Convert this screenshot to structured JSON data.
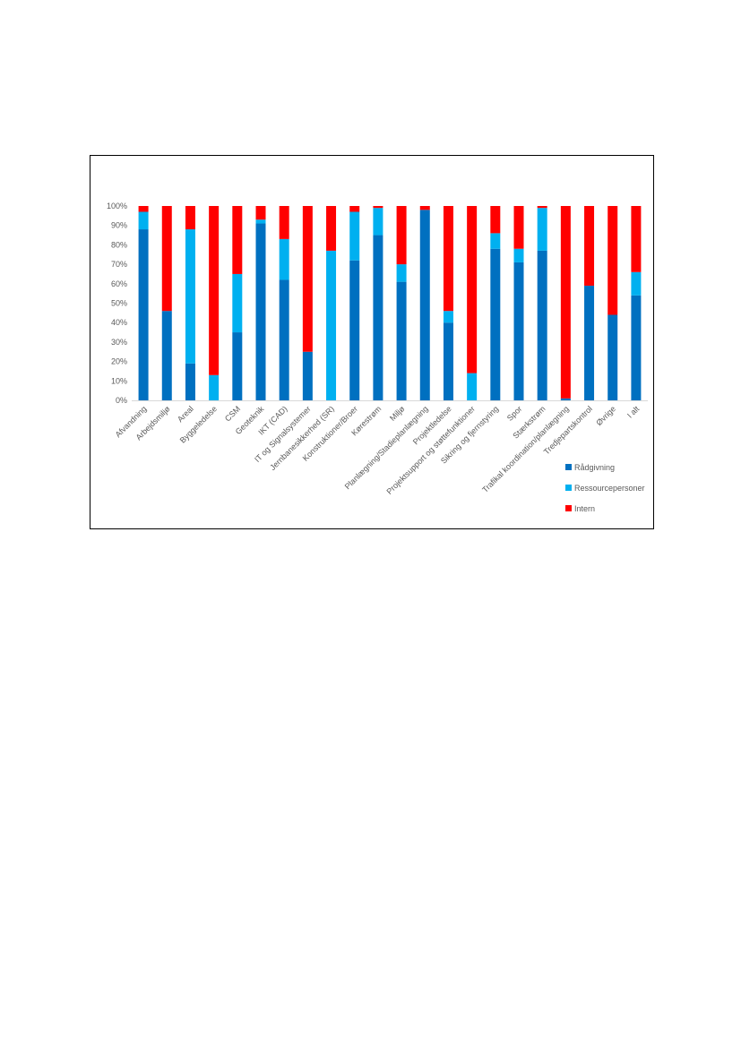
{
  "chart_data": {
    "type": "bar",
    "stacked": true,
    "percent": true,
    "categories": [
      "Afvandning",
      "Arbejdsmiljø",
      "Areal",
      "Byggeledelse",
      "CSM",
      "Geoteknik",
      "IKT (CAD)",
      "IT og Signalsystemer",
      "Jernbanesikkerhed (SR)",
      "Konstruktioner/Broer",
      "Kørestrøm",
      "Miljø",
      "Planlægning/Stadieplanlægning",
      "Projektledelse",
      "Projektsupport og støttefunktioner",
      "Sikring og fjernstyring",
      "Spor",
      "Stærkstrøm",
      "Trafikal koordination/planlægning",
      "Tredjepartskontrol",
      "Øvrige",
      "I alt"
    ],
    "series": [
      {
        "name": "Rådgivning",
        "color": "#0070C0",
        "values": [
          88,
          46,
          19,
          0,
          35,
          91,
          62,
          25,
          0,
          72,
          85,
          61,
          98,
          40,
          0,
          78,
          71,
          77,
          1,
          59,
          44,
          54
        ]
      },
      {
        "name": "Ressourcepersoner",
        "color": "#00B0F0",
        "values": [
          9,
          0,
          69,
          13,
          30,
          2,
          21,
          0,
          77,
          25,
          14,
          9,
          0,
          6,
          14,
          8,
          7,
          22,
          0,
          0,
          0,
          12
        ]
      },
      {
        "name": "Intern",
        "color": "#FF0000",
        "values": [
          3,
          54,
          12,
          87,
          35,
          7,
          17,
          75,
          23,
          3,
          1,
          30,
          2,
          54,
          86,
          14,
          22,
          1,
          99,
          41,
          56,
          34
        ]
      }
    ],
    "y_ticks": [
      "0%",
      "10%",
      "20%",
      "30%",
      "40%",
      "50%",
      "60%",
      "70%",
      "80%",
      "90%",
      "100%"
    ],
    "ylim": [
      0,
      100
    ],
    "grid": false,
    "legend_position": "right"
  }
}
